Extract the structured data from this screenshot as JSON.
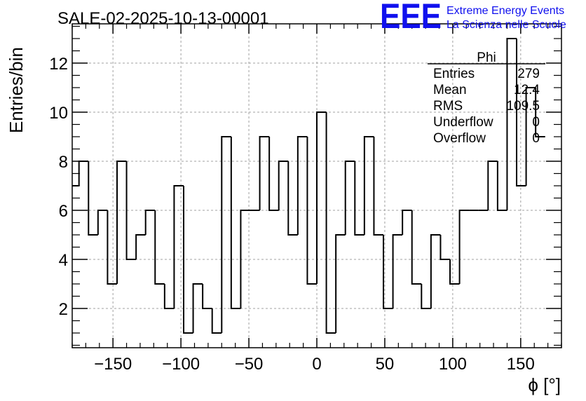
{
  "chart_data": {
    "type": "bar",
    "style": "step-histogram",
    "title": "SALE-02-2025-10-13-00001",
    "xlabel": "ϕ [°]",
    "ylabel": "Entries/bin",
    "xlim": [
      -180,
      180
    ],
    "ylim": [
      0.4,
      13.6
    ],
    "x_ticks": [
      -150,
      -100,
      -50,
      0,
      50,
      100,
      150
    ],
    "x_tick_labels": [
      "−150",
      "−100",
      "−50",
      "0",
      "50",
      "100",
      "150"
    ],
    "y_ticks": [
      2,
      4,
      6,
      8,
      10,
      12
    ],
    "y_tick_labels": [
      "2",
      "4",
      "6",
      "8",
      "10",
      "12"
    ],
    "grid": true,
    "bin_width": 7,
    "bin_edges_start": -182,
    "values": [
      7,
      8,
      5,
      6,
      3,
      8,
      4,
      5,
      6,
      3,
      2,
      7,
      1,
      3,
      2,
      1,
      9,
      2,
      6,
      6,
      9,
      6,
      8,
      5,
      9,
      3,
      10,
      1,
      5,
      8,
      5,
      9,
      5,
      2,
      5,
      6,
      3,
      2,
      5,
      4,
      3,
      6,
      6,
      6,
      8,
      6,
      13,
      7,
      11,
      9
    ],
    "stats": {
      "name": "Phi",
      "rows": [
        {
          "label": "Entries",
          "value": "279"
        },
        {
          "label": "Mean",
          "value": "12.4"
        },
        {
          "label": "RMS",
          "value": "109.5"
        },
        {
          "label": "Underflow",
          "value": "0"
        },
        {
          "label": "Overflow",
          "value": "0"
        }
      ]
    }
  },
  "logo": {
    "mark": "EEE",
    "line1": "Extreme Energy Events",
    "line2": "La Scienza nelle Scuole",
    "color": "#1010ee"
  },
  "colors": {
    "line": "#000000",
    "grid": "#a0a0a0"
  }
}
